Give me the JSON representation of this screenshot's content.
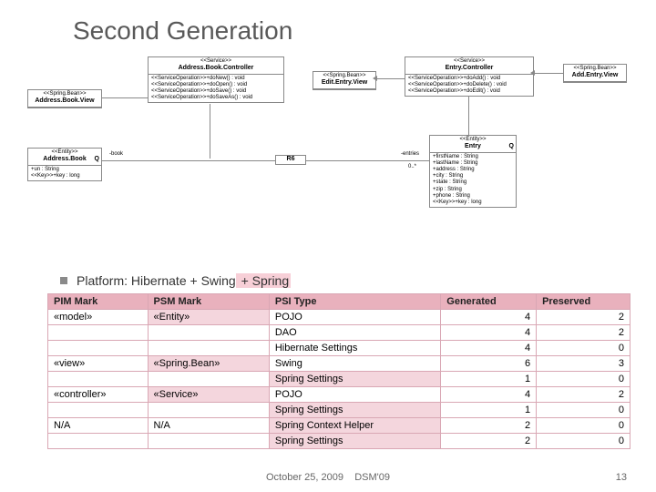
{
  "title": "Second Generation",
  "platform_line": {
    "prefix": "Platform: ",
    "text1": "Hibernate + Swing",
    "hl": " + Spring"
  },
  "uml": {
    "addressBookView": {
      "stereo": "<<Spring.Bean>>",
      "name": "Address.Book.View"
    },
    "addressBook": {
      "stereo": "<<Entity>>",
      "name": "Address.Book",
      "attrs": "+un : String\n<<Key>>+key : long"
    },
    "addressBookController": {
      "stereo": "<<Service>>",
      "name": "Address.Book.Controller",
      "ops": "<<ServiceOperation>>+doNew() : void\n<<ServiceOperation>>+doOpen() : void\n<<ServiceOperation>>+doSave() : void\n<<ServiceOperation>>+doSaveAs() : void"
    },
    "editEntryView": {
      "stereo": "<<Spring.Bean>>",
      "name": "Edit.Entry.View"
    },
    "entryController": {
      "stereo": "<<Service>>",
      "name": "Entry.Controller",
      "ops": "<<ServiceOperation>>+doAdd() : void\n<<ServiceOperation>>+doDelete() : void\n<<ServiceOperation>>+doEdit() : void"
    },
    "addEntryView": {
      "stereo": "<<Spring.Bean>>",
      "name": "Add.Entry.View"
    },
    "r6": {
      "name": "R6"
    },
    "entry": {
      "stereo": "<<Entity>>",
      "name": "Entry",
      "attrs": "+firstName : String\n+lastName : String\n+address : String\n+city : String\n+state : String\n+zip : String\n+phone : String\n<<Key>>+key : long"
    },
    "assoc": {
      "book": "-book",
      "entries": "-entries",
      "mult": "0..*"
    }
  },
  "table": {
    "headers": [
      "PIM Mark",
      "PSM Mark",
      "PSI Type",
      "Generated",
      "Preserved"
    ],
    "rows": [
      {
        "pim": "«model»",
        "psm": "«Entity»",
        "psi": "POJO",
        "gen": 4,
        "pre": 2,
        "psm_hl": true
      },
      {
        "pim": "",
        "psm": "",
        "psi": "DAO",
        "gen": 4,
        "pre": 2
      },
      {
        "pim": "",
        "psm": "",
        "psi": "Hibernate Settings",
        "gen": 4,
        "pre": 0
      },
      {
        "pim": "«view»",
        "psm": "«Spring.Bean»",
        "psi": "Swing",
        "gen": 6,
        "pre": 3,
        "psm_hl": true
      },
      {
        "pim": "",
        "psm": "",
        "psi": "Spring Settings",
        "gen": 1,
        "pre": 0,
        "psi_hl": true
      },
      {
        "pim": "«controller»",
        "psm": "«Service»",
        "psi": "POJO",
        "gen": 4,
        "pre": 2,
        "psm_hl": true
      },
      {
        "pim": "",
        "psm": "",
        "psi": "Spring Settings",
        "gen": 1,
        "pre": 0,
        "psi_hl": true
      },
      {
        "pim": "N/A",
        "psm": "N/A",
        "psi": "Spring Context Helper",
        "gen": 2,
        "pre": 0,
        "psi_hl": true
      },
      {
        "pim": "",
        "psm": "",
        "psi": "Spring Settings",
        "gen": 2,
        "pre": 0,
        "psi_hl": true
      }
    ]
  },
  "footer": {
    "date": "October 25, 2009",
    "conf": "DSM'09",
    "page": "13"
  },
  "colors": {
    "title": "#595959",
    "header_bg": "#e9b1bd",
    "border": "#d9a7b4",
    "hl_bg": "#f7cfd7"
  }
}
